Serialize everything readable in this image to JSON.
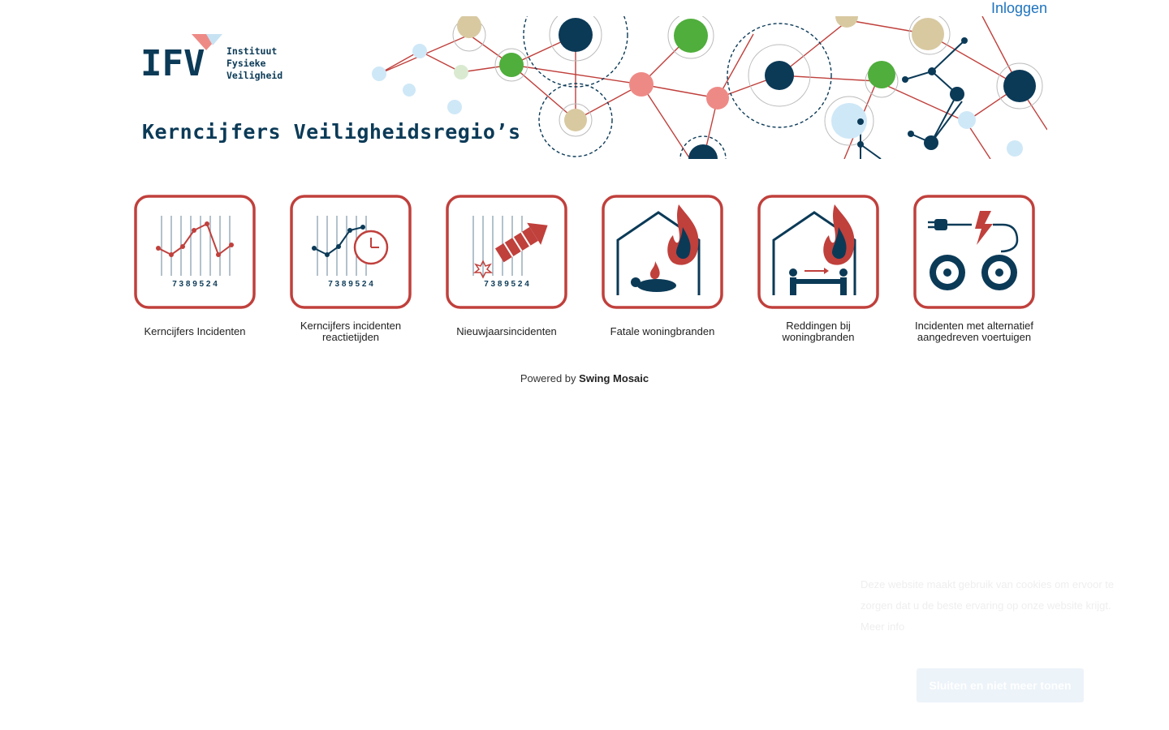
{
  "header": {
    "login_label": "Inloggen"
  },
  "banner": {
    "logo_letters": "IFV",
    "logo_line1": "Instituut",
    "logo_line2": "Fysieke",
    "logo_line3": "Veiligheid",
    "title": "Kerncijfers Veiligheidsregio’s",
    "colors": {
      "navy": "#0b3a57",
      "green": "#4fae3c",
      "beige": "#d8c9a1",
      "pink": "#ee8a86",
      "lightblue": "#cfe8f7",
      "red": "#c0403c"
    }
  },
  "tiles": [
    {
      "label": "Kerncijfers Incidenten",
      "icon": "line-chart-icon"
    },
    {
      "label": "Kerncijfers incidenten reactietijden",
      "icon": "chart-clock-icon"
    },
    {
      "label": "Nieuwjaarsincidenten",
      "icon": "firework-rocket-icon"
    },
    {
      "label": "Fatale woningbranden",
      "icon": "house-fire-victim-icon"
    },
    {
      "label": "Reddingen bij woningbranden",
      "icon": "house-fire-rescue-icon"
    },
    {
      "label": "Incidenten met alternatief aangedreven voertuigen",
      "icon": "electric-vehicle-icon"
    }
  ],
  "tile_digits": "7 3 8 9 5 2 4",
  "footer": {
    "powered_prefix": "Powered by",
    "powered_brand": "Swing Mosaic"
  },
  "cookie": {
    "text": "Deze website maakt gebruik van cookies om ervoor te zorgen dat u de beste ervaring op onze website krijgt. Meer info",
    "button_label": "Sluiten en niet meer tonen"
  }
}
